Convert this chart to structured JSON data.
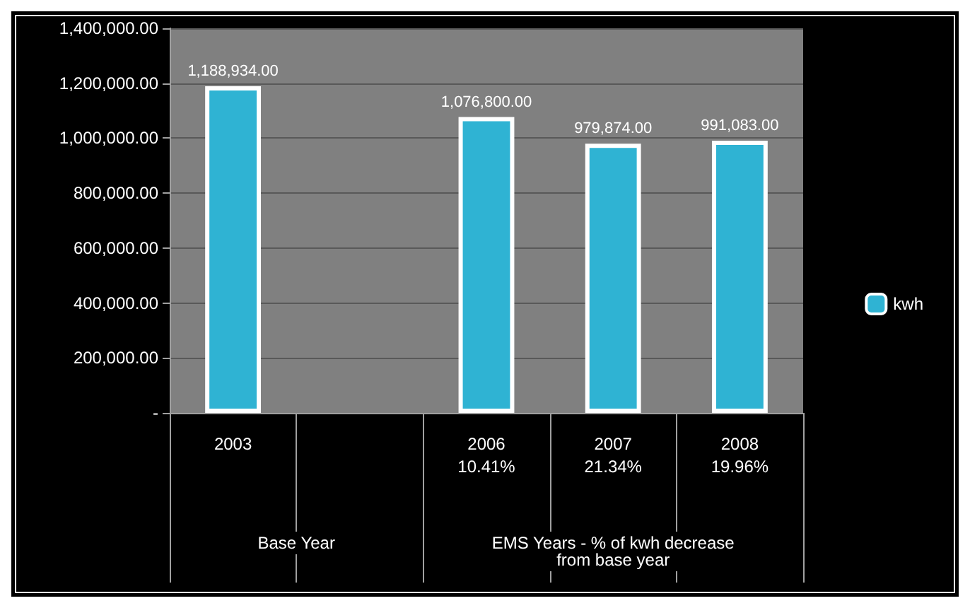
{
  "chart_data": {
    "type": "bar",
    "categories": [
      "2003",
      null,
      "2006\n10.41%",
      "2007\n21.34%",
      "2008\n19.96%"
    ],
    "series": [
      {
        "name": "kwh",
        "color": "#2fb3d3",
        "values": [
          1188934,
          null,
          1076800,
          979874,
          991083
        ],
        "value_labels": [
          "1,188,934.00",
          null,
          "1,076,800.00",
          "979,874.00",
          "991,083.00"
        ]
      }
    ],
    "ylim": [
      0,
      1400000
    ],
    "yticks": [
      {
        "value": 0,
        "label": "-"
      },
      {
        "value": 200000,
        "label": "200,000.00"
      },
      {
        "value": 400000,
        "label": "400,000.00"
      },
      {
        "value": 600000,
        "label": "600,000.00"
      },
      {
        "value": 800000,
        "label": "800,000.00"
      },
      {
        "value": 1000000,
        "label": "1,000,000.00"
      },
      {
        "value": 1200000,
        "label": "1,200,000.00"
      },
      {
        "value": 1400000,
        "label": "1,400,000.00"
      }
    ],
    "annotations": [
      "Base Year",
      "EMS Years - % of kwh decrease\nfrom base year"
    ],
    "grid": "y",
    "legend": "right"
  }
}
